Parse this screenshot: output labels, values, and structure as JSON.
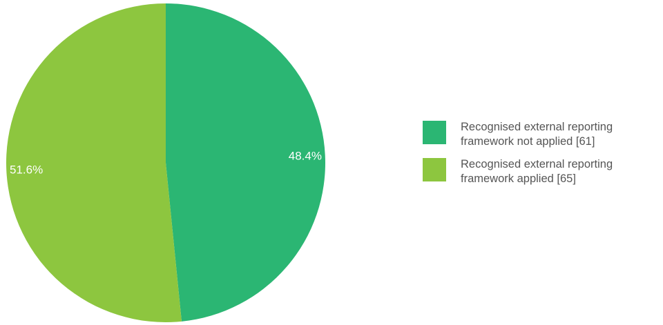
{
  "chart_data": {
    "type": "pie",
    "title": "",
    "slices": [
      {
        "label": "Recognised external reporting framework not applied [61]",
        "value": 61,
        "percent_label": "48.4%",
        "color": "#2bb673"
      },
      {
        "label": "Recognised external reporting framework applied [65]",
        "value": 65,
        "percent_label": "51.6%",
        "color": "#8dc63f"
      }
    ],
    "start_angle": "12 o'clock",
    "direction": "clockwise",
    "legend_position": "right"
  },
  "legend": {
    "items": [
      {
        "line1": "Recognised external reporting",
        "line2": "framework not applied [61]",
        "color": "#2bb673"
      },
      {
        "line1": "Recognised external reporting",
        "line2": "framework applied [65]",
        "color": "#8dc63f"
      }
    ]
  }
}
